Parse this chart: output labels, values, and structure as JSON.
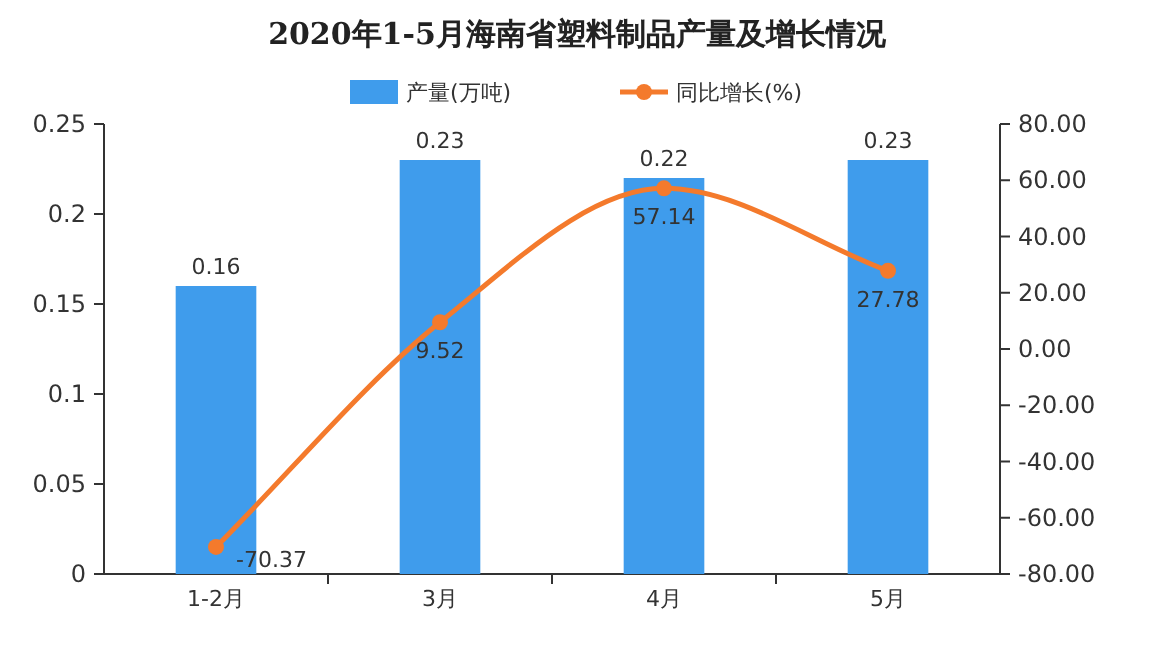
{
  "chart_data": {
    "type": "bar",
    "title": "2020年1-5月海南省塑料制品产量及增长情况",
    "categories": [
      "1-2月",
      "3月",
      "4月",
      "5月"
    ],
    "series": [
      {
        "name": "产量(万吨)",
        "color": "#3f9cec",
        "values": [
          0.16,
          0.23,
          0.22,
          0.23
        ]
      },
      {
        "name": "同比增长(%)",
        "type": "line",
        "axis": "y2",
        "color": "#f47a2c",
        "marker": "circle",
        "values": [
          -70.37,
          9.52,
          57.14,
          27.78
        ]
      }
    ],
    "ylim": [
      0,
      0.25
    ],
    "yticks": [
      0,
      0.05,
      0.1,
      0.15,
      0.2,
      0.25
    ],
    "y2lim": [
      -80,
      80
    ],
    "y2ticks": [
      {
        "value": -80,
        "label": "-80.00"
      },
      {
        "value": -60,
        "label": "-60.00"
      },
      {
        "value": -40,
        "label": "-40.00"
      },
      {
        "value": -20,
        "label": "-20.00"
      },
      {
        "value": 0,
        "label": "0.00"
      },
      {
        "value": 20,
        "label": "20.00"
      },
      {
        "value": 40,
        "label": "40.00"
      },
      {
        "value": 60,
        "label": "60.00"
      },
      {
        "value": 80,
        "label": "80.00"
      }
    ],
    "data_labels": true,
    "legend": "top"
  }
}
